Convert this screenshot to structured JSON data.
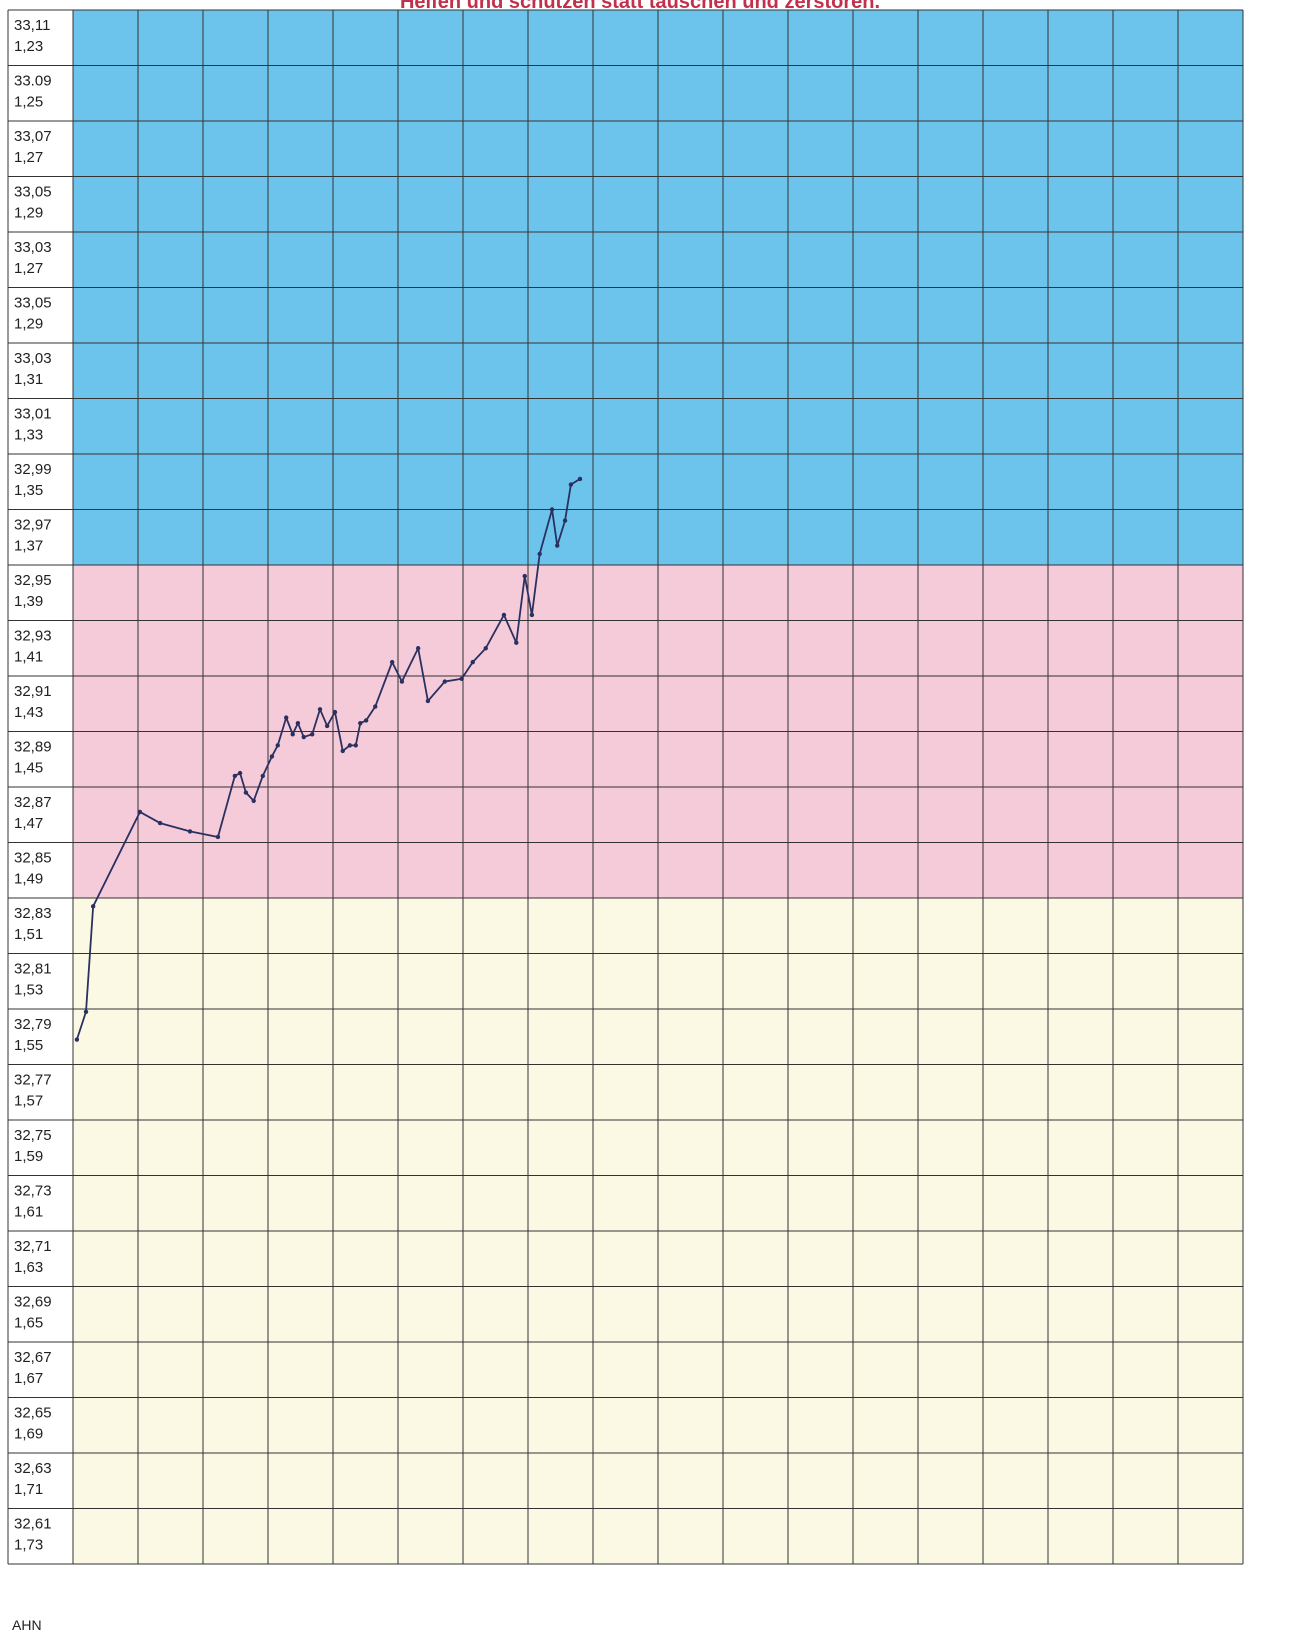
{
  "chart_data": {
    "type": "line",
    "title": "Helfen und schützen statt täuschen und zerstören.",
    "footer": "AHN",
    "rows": [
      {
        "labels": [
          "33,11",
          "1,23"
        ],
        "color": "#6cc4ec"
      },
      {
        "labels": [
          "33.09",
          "1,25"
        ],
        "color": "#6cc4ec"
      },
      {
        "labels": [
          "33,07",
          "1,27"
        ],
        "color": "#6cc4ec"
      },
      {
        "labels": [
          "33,05",
          "1,29"
        ],
        "color": "#6cc4ec"
      },
      {
        "labels": [
          "33,03",
          "1,27"
        ],
        "color": "#6cc4ec"
      },
      {
        "labels": [
          "33,05",
          "1,29"
        ],
        "color": "#6cc4ec"
      },
      {
        "labels": [
          "33,03",
          "1,31"
        ],
        "color": "#6cc4ec"
      },
      {
        "labels": [
          "33,01",
          "1,33"
        ],
        "color": "#6cc4ec"
      },
      {
        "labels": [
          "32,99",
          "1,35"
        ],
        "color": "#6cc4ec"
      },
      {
        "labels": [
          "32,97",
          "1,37"
        ],
        "color": "#6cc4ec"
      },
      {
        "labels": [
          "32,95",
          "1,39"
        ],
        "color": "#f5cad9"
      },
      {
        "labels": [
          "32,93",
          "1,41"
        ],
        "color": "#f5cad9"
      },
      {
        "labels": [
          "32,91",
          "1,43"
        ],
        "color": "#f5cad9"
      },
      {
        "labels": [
          "32,89",
          "1,45"
        ],
        "color": "#f5cad9"
      },
      {
        "labels": [
          "32,87",
          "1,47"
        ],
        "color": "#f5cad9"
      },
      {
        "labels": [
          "32,85",
          "1,49"
        ],
        "color": "#f5cad9"
      },
      {
        "labels": [
          "32,83",
          "1,51"
        ],
        "color": "#fbf9e4"
      },
      {
        "labels": [
          "32,81",
          "1,53"
        ],
        "color": "#fbf9e4"
      },
      {
        "labels": [
          "32,79",
          "1,55"
        ],
        "color": "#fbf9e4"
      },
      {
        "labels": [
          "32,77",
          "1,57"
        ],
        "color": "#fbf9e4"
      },
      {
        "labels": [
          "32,75",
          "1,59"
        ],
        "color": "#fbf9e4"
      },
      {
        "labels": [
          "32,73",
          "1,61"
        ],
        "color": "#fbf9e4"
      },
      {
        "labels": [
          "32,71",
          "1,63"
        ],
        "color": "#fbf9e4"
      },
      {
        "labels": [
          "32,69",
          "1,65"
        ],
        "color": "#fbf9e4"
      },
      {
        "labels": [
          "32,67",
          "1,67"
        ],
        "color": "#fbf9e4"
      },
      {
        "labels": [
          "32,65",
          "1,69"
        ],
        "color": "#fbf9e4"
      },
      {
        "labels": [
          "32,63",
          "1,71"
        ],
        "color": "#fbf9e4"
      },
      {
        "labels": [
          "32,61",
          "1,73"
        ],
        "color": "#fbf9e4"
      }
    ],
    "xlim": [
      0,
      18
    ],
    "ylim": [
      32.6,
      33.16
    ],
    "x": [
      0.06,
      0.2,
      0.31,
      1.03,
      1.34,
      1.8,
      2.23,
      2.49,
      2.57,
      2.66,
      2.78,
      2.92,
      3.06,
      3.15,
      3.28,
      3.38,
      3.46,
      3.55,
      3.68,
      3.8,
      3.91,
      4.03,
      4.15,
      4.26,
      4.35,
      4.42,
      4.51,
      4.65,
      4.91,
      5.06,
      5.31,
      5.46,
      5.72,
      5.98,
      6.15,
      6.35,
      6.63,
      6.82,
      6.95,
      7.06,
      7.18,
      7.37,
      7.45,
      7.57,
      7.66,
      7.8
    ],
    "series": [
      {
        "color": "#2a3160",
        "values": [
          32.789,
          32.799,
          32.837,
          32.871,
          32.867,
          32.864,
          32.862,
          32.884,
          32.885,
          32.878,
          32.875,
          32.884,
          32.891,
          32.895,
          32.905,
          32.899,
          32.903,
          32.898,
          32.899,
          32.908,
          32.902,
          32.907,
          32.893,
          32.895,
          32.895,
          32.903,
          32.904,
          32.909,
          32.925,
          32.918,
          32.93,
          32.911,
          32.918,
          32.919,
          32.925,
          32.93,
          32.942,
          32.932,
          32.956,
          32.942,
          32.964,
          32.98,
          32.967,
          32.976,
          32.989,
          32.991
        ]
      }
    ],
    "grid": true
  }
}
